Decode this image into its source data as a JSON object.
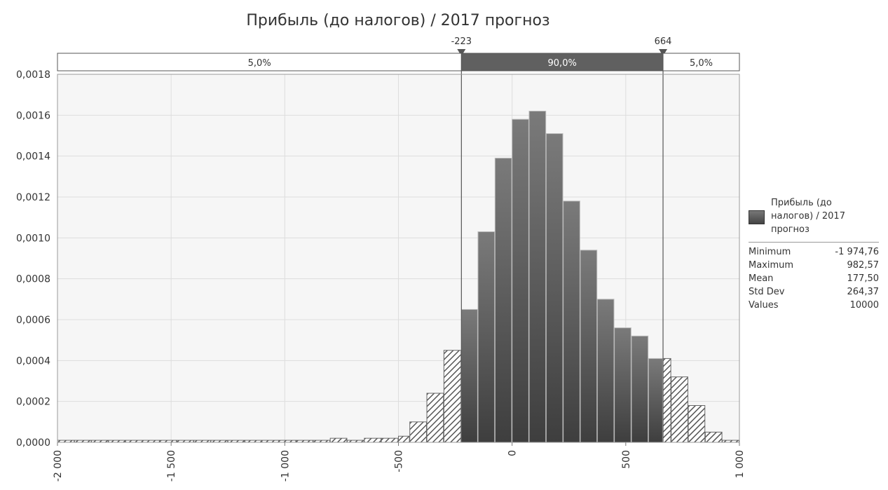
{
  "chart_data": {
    "type": "bar",
    "title": "Прибыль (до налогов) / 2017 прогноз",
    "xlabel": "",
    "ylabel": "",
    "xlim": [
      -2000,
      1000
    ],
    "ylim": [
      0,
      0.0018
    ],
    "grid": true,
    "bin_width": 75,
    "bins": [
      {
        "x0": -2000,
        "x1": -1925,
        "value": 1e-05
      },
      {
        "x0": -1925,
        "x1": -1850,
        "value": 1e-05
      },
      {
        "x0": -1850,
        "x1": -1775,
        "value": 1e-05
      },
      {
        "x0": -1775,
        "x1": -1700,
        "value": 1e-05
      },
      {
        "x0": -1700,
        "x1": -1625,
        "value": 1e-05
      },
      {
        "x0": -1625,
        "x1": -1550,
        "value": 1e-05
      },
      {
        "x0": -1550,
        "x1": -1475,
        "value": 1e-05
      },
      {
        "x0": -1475,
        "x1": -1400,
        "value": 1e-05
      },
      {
        "x0": -1400,
        "x1": -1325,
        "value": 1e-05
      },
      {
        "x0": -1325,
        "x1": -1250,
        "value": 1e-05
      },
      {
        "x0": -1250,
        "x1": -1175,
        "value": 1e-05
      },
      {
        "x0": -1175,
        "x1": -1100,
        "value": 1e-05
      },
      {
        "x0": -1100,
        "x1": -1025,
        "value": 1e-05
      },
      {
        "x0": -1025,
        "x1": -950,
        "value": 1e-05
      },
      {
        "x0": -950,
        "x1": -875,
        "value": 1e-05
      },
      {
        "x0": -875,
        "x1": -800,
        "value": 1e-05
      },
      {
        "x0": -800,
        "x1": -725,
        "value": 2e-05
      },
      {
        "x0": -725,
        "x1": -650,
        "value": 1e-05
      },
      {
        "x0": -650,
        "x1": -575,
        "value": 2e-05
      },
      {
        "x0": -575,
        "x1": -500,
        "value": 2e-05
      },
      {
        "x0": -500,
        "x1": -450,
        "value": 3e-05
      },
      {
        "x0": -450,
        "x1": -375,
        "value": 0.0001
      },
      {
        "x0": -375,
        "x1": -300,
        "value": 0.00024
      },
      {
        "x0": -300,
        "x1": -223,
        "value": 0.00045
      },
      {
        "x0": -223,
        "x1": -150,
        "value": 0.00065
      },
      {
        "x0": -150,
        "x1": -75,
        "value": 0.00103
      },
      {
        "x0": -75,
        "x1": 0,
        "value": 0.00139
      },
      {
        "x0": 0,
        "x1": 75,
        "value": 0.00158
      },
      {
        "x0": 75,
        "x1": 150,
        "value": 0.00162
      },
      {
        "x0": 150,
        "x1": 225,
        "value": 0.00151
      },
      {
        "x0": 225,
        "x1": 300,
        "value": 0.00118
      },
      {
        "x0": 300,
        "x1": 375,
        "value": 0.00094
      },
      {
        "x0": 375,
        "x1": 450,
        "value": 0.0007
      },
      {
        "x0": 450,
        "x1": 525,
        "value": 0.00056
      },
      {
        "x0": 525,
        "x1": 600,
        "value": 0.00052
      },
      {
        "x0": 600,
        "x1": 664,
        "value": 0.00041
      },
      {
        "x0": 664,
        "x1": 700,
        "value": 0.00041
      },
      {
        "x0": 700,
        "x1": 775,
        "value": 0.00032
      },
      {
        "x0": 775,
        "x1": 850,
        "value": 0.00018
      },
      {
        "x0": 850,
        "x1": 925,
        "value": 5e-05
      },
      {
        "x0": 925,
        "x1": 1000,
        "value": 1e-05
      }
    ],
    "x_ticks": [
      {
        "value": -2000,
        "label": "-2 000"
      },
      {
        "value": -1500,
        "label": "-1 500"
      },
      {
        "value": -1000,
        "label": "-1 000"
      },
      {
        "value": -500,
        "label": "-500"
      },
      {
        "value": 0,
        "label": "0"
      },
      {
        "value": 500,
        "label": "500"
      },
      {
        "value": 1000,
        "label": "1 000"
      }
    ],
    "y_ticks": [
      {
        "value": 0,
        "label": "0,0000"
      },
      {
        "value": 0.0002,
        "label": "0,0002"
      },
      {
        "value": 0.0004,
        "label": "0,0004"
      },
      {
        "value": 0.0006,
        "label": "0,0006"
      },
      {
        "value": 0.0008,
        "label": "0,0008"
      },
      {
        "value": 0.001,
        "label": "0,0010"
      },
      {
        "value": 0.0012,
        "label": "0,0012"
      },
      {
        "value": 0.0014,
        "label": "0,0014"
      },
      {
        "value": 0.0016,
        "label": "0,0016"
      },
      {
        "value": 0.0018,
        "label": "0,0018"
      }
    ],
    "delimiters": [
      {
        "value": -223,
        "label": "-223"
      },
      {
        "value": 664,
        "label": "664"
      }
    ],
    "interval_bar": [
      {
        "from": -2000,
        "to": -223,
        "label": "5,0%",
        "selected": false
      },
      {
        "from": -223,
        "to": 664,
        "label": "90,0%",
        "selected": true
      },
      {
        "from": 664,
        "to": 1000,
        "label": "5,0%",
        "selected": false
      }
    ],
    "legend_series": "Прибыль (до налогов) / 2017 прогноз",
    "colors": {
      "bar_dark": "#444444",
      "bar_mid": "#666666",
      "bar_light": "#888888",
      "plot_bg": "#f6f6f6",
      "grid": "#dddddd",
      "selected_band": "#606060"
    }
  },
  "stats_panel": {
    "legend_label": "Прибыль (до налогов) / 2017 прогноз",
    "stats": [
      {
        "label": "Minimum",
        "value": "-1 974,76"
      },
      {
        "label": "Maximum",
        "value": "982,57"
      },
      {
        "label": "Mean",
        "value": "177,50"
      },
      {
        "label": "Std Dev",
        "value": "264,37"
      },
      {
        "label": "Values",
        "value": "10000"
      }
    ]
  }
}
